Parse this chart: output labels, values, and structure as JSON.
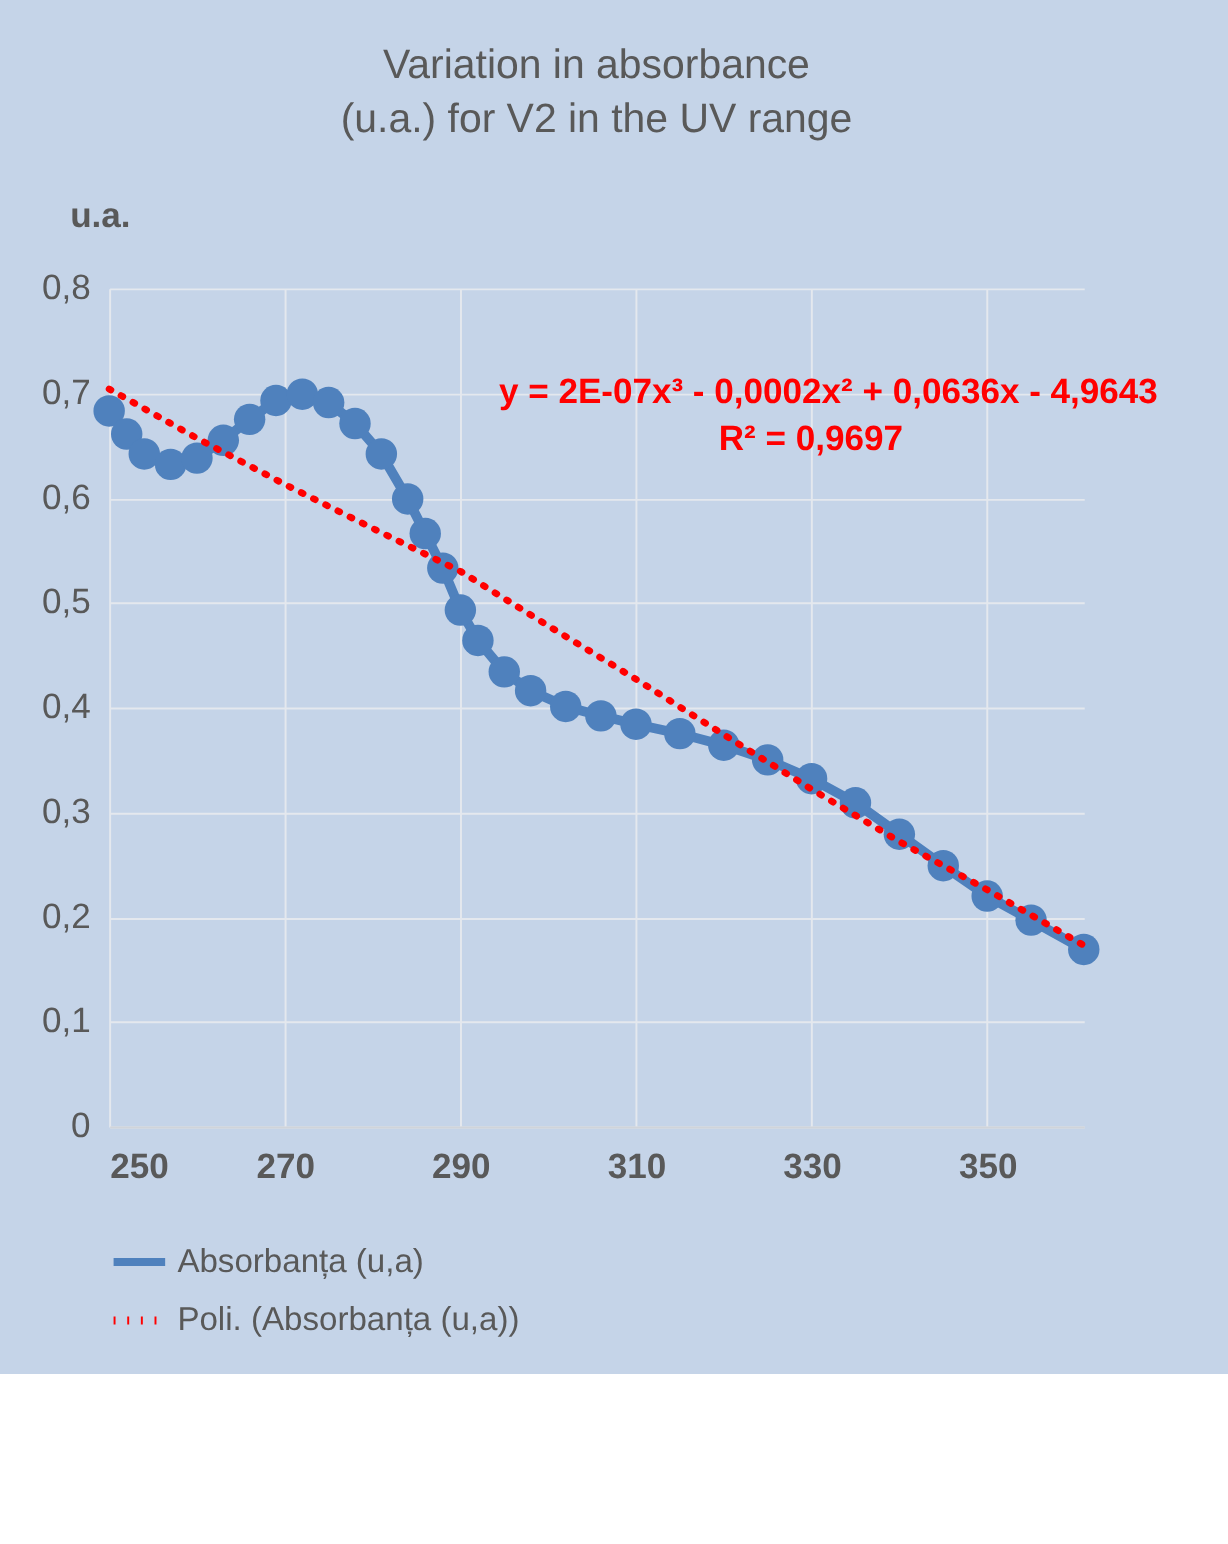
{
  "chart_data": {
    "type": "line",
    "title": "Variation in absorbance (u.a.) for V2 in the UV range",
    "ylabel": "u.a.",
    "x": [
      250,
      252,
      254,
      257,
      260,
      263,
      266,
      269,
      272,
      275,
      278,
      281,
      284,
      286,
      288,
      290,
      292,
      295,
      298,
      302,
      306,
      310,
      315,
      320,
      325,
      330,
      335,
      340,
      345,
      350,
      355,
      361
    ],
    "series": [
      {
        "name": "Absorbanța (u,a)",
        "color": "#4f81bd",
        "marker": "circle",
        "line_style": "solid",
        "values": [
          0.683,
          0.661,
          0.642,
          0.632,
          0.638,
          0.655,
          0.675,
          0.693,
          0.699,
          0.691,
          0.671,
          0.642,
          0.599,
          0.566,
          0.533,
          0.493,
          0.464,
          0.434,
          0.416,
          0.401,
          0.392,
          0.384,
          0.375,
          0.364,
          0.35,
          0.332,
          0.309,
          0.279,
          0.249,
          0.22,
          0.197,
          0.169
        ]
      },
      {
        "name": "Poli. (Absorbanța (u,a))",
        "type": "line",
        "color": "#ff0000",
        "marker": "none",
        "line_style": "dotted",
        "x": [
          250,
          260,
          270,
          280,
          290,
          300,
          310,
          320,
          330,
          340,
          350,
          361
        ],
        "values": [
          0.704,
          0.657,
          0.613,
          0.571,
          0.53,
          0.478,
          0.427,
          0.374,
          0.322,
          0.272,
          0.226,
          0.173
        ]
      }
    ],
    "xlim": [
      250,
      361
    ],
    "xticks": [
      250,
      270,
      290,
      310,
      330,
      350
    ],
    "ylim": [
      0,
      0.8
    ],
    "yticks": [
      {
        "value": 0,
        "label": "0"
      },
      {
        "value": 0.1,
        "label": "0,1"
      },
      {
        "value": 0.2,
        "label": "0,2"
      },
      {
        "value": 0.3,
        "label": "0,3"
      },
      {
        "value": 0.4,
        "label": "0,4"
      },
      {
        "value": 0.5,
        "label": "0,5"
      },
      {
        "value": 0.6,
        "label": "0,6"
      },
      {
        "value": 0.7,
        "label": "0,7"
      },
      {
        "value": 0.8,
        "label": "0,8"
      }
    ],
    "annotations": [
      "y = 2E-07x³ - 0,0002x² + 0,0636x - 4,9643",
      "R² = 0,9697"
    ],
    "grid": true,
    "legend": "bottom"
  }
}
